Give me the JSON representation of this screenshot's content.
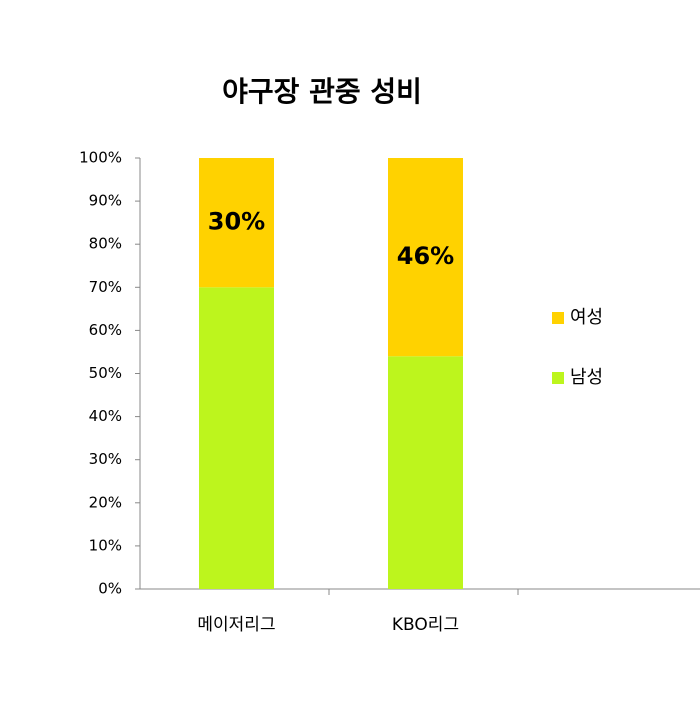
{
  "chart_data": {
    "type": "stacked_bar",
    "title": "야구장 관중 성비",
    "categories": [
      "메이저리그",
      "KBO리그"
    ],
    "series": [
      {
        "name": "남성",
        "color": "#bdf51d",
        "values": [
          70,
          54
        ]
      },
      {
        "name": "여성",
        "color": "#ffd200",
        "values": [
          30,
          46
        ],
        "value_labels": [
          "30%",
          "46%"
        ]
      }
    ],
    "ylim": [
      0,
      100
    ],
    "yticks": [
      {
        "value": 0,
        "label": "0%"
      },
      {
        "value": 10,
        "label": "10%"
      },
      {
        "value": 20,
        "label": "20%"
      },
      {
        "value": 30,
        "label": "30%"
      },
      {
        "value": 40,
        "label": "40%"
      },
      {
        "value": 50,
        "label": "50%"
      },
      {
        "value": 60,
        "label": "60%"
      },
      {
        "value": 70,
        "label": "70%"
      },
      {
        "value": 80,
        "label": "80%"
      },
      {
        "value": 90,
        "label": "90%"
      },
      {
        "value": 100,
        "label": "100%"
      }
    ],
    "grid": false,
    "legend": "right"
  }
}
